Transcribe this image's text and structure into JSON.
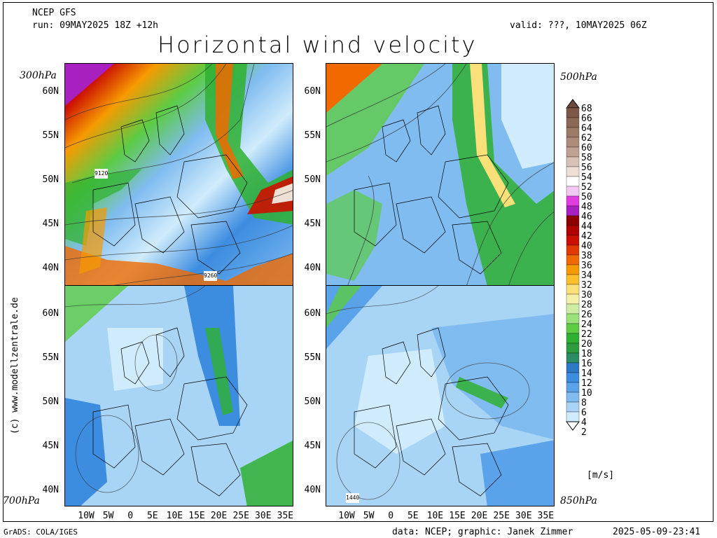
{
  "header": {
    "model": "NCEP GFS",
    "run": "run: 09MAY2025 18Z +12h",
    "valid": "valid: ???, 10MAY2025 06Z",
    "title": "Horizontal wind velocity"
  },
  "levels": {
    "top_left": "300hPa",
    "top_right": "500hPa",
    "bottom_left": "700hPa",
    "bottom_right": "850hPa"
  },
  "lat_labels": [
    "60N",
    "55N",
    "50N",
    "45N",
    "40N"
  ],
  "lon_labels": [
    "10W",
    "5W",
    "0",
    "5E",
    "10E",
    "15E",
    "20E",
    "25E",
    "30E",
    "35E"
  ],
  "contour_labels": {
    "p300_a": "9120",
    "p300_b": "9260",
    "p850": "1440"
  },
  "colorbar": {
    "unit": "[m/s]",
    "values": [
      "68",
      "66",
      "64",
      "62",
      "60",
      "58",
      "56",
      "54",
      "52",
      "50",
      "48",
      "46",
      "44",
      "42",
      "40",
      "38",
      "36",
      "34",
      "32",
      "30",
      "28",
      "26",
      "24",
      "22",
      "20",
      "18",
      "16",
      "14",
      "12",
      "10",
      "8",
      "6",
      "4",
      "2"
    ],
    "colors": [
      "#6b4a3c",
      "#7d5848",
      "#8c6857",
      "#9b7a68",
      "#ac8d7b",
      "#bea392",
      "#d8c2b5",
      "#efe0d6",
      "#ffffff",
      "#f2c9f2",
      "#e03ce0",
      "#a820c0",
      "#8c0000",
      "#b00000",
      "#cc1000",
      "#e03a00",
      "#f06a00",
      "#f79a00",
      "#fbbf2a",
      "#fbe07a",
      "#f5f0a8",
      "#cdeea0",
      "#9ae27a",
      "#5ccc44",
      "#2fb030",
      "#2d9c3c",
      "#2c8c64",
      "#2e78c8",
      "#3c8ce0",
      "#5aa2ea",
      "#80bcf0",
      "#a8d4f6",
      "#d0ecfc",
      "#ffffff"
    ]
  },
  "footer": {
    "software": "GrADS: COLA/IGES",
    "credit": "data: NCEP; graphic: Janek Zimmer",
    "timestamp": "2025-05-09-23:41"
  },
  "watermark": "(c) www.modellzentrale.de"
}
